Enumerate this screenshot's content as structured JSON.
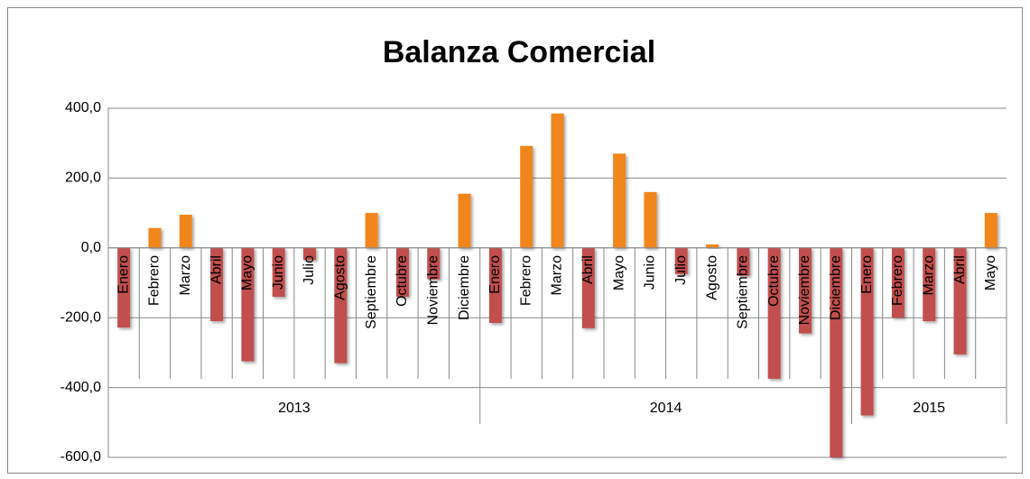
{
  "chart_data": {
    "type": "bar",
    "title": "Balanza Comercial",
    "groups": [
      {
        "label": "2013",
        "categories": [
          "Enero",
          "Febrero",
          "Marzo",
          "Abril",
          "Mayo",
          "Junio",
          "Julio",
          "Agosto",
          "Septiembre",
          "Octubre",
          "Noviembre",
          "Diciembre"
        ],
        "values": [
          -228,
          57,
          95,
          -210,
          -325,
          -140,
          -35,
          -330,
          100,
          -140,
          -90,
          155
        ]
      },
      {
        "label": "2014",
        "categories": [
          "Enero",
          "Febrero",
          "Marzo",
          "Abril",
          "Mayo",
          "Junio",
          "Julio",
          "Agosto",
          "Septiembre",
          "Octubre",
          "Noviembre",
          "Diciembre"
        ],
        "values": [
          -215,
          292,
          385,
          -230,
          270,
          160,
          -75,
          10,
          -80,
          -375,
          -245,
          -600
        ]
      },
      {
        "label": "2015",
        "categories": [
          "Enero",
          "Febrero",
          "Marzo",
          "Abril",
          "Mayo"
        ],
        "values": [
          -480,
          -200,
          -210,
          -305,
          100
        ]
      }
    ],
    "positive_color": "#f0861c",
    "negative_color": "#c0504d",
    "ylim": [
      -600,
      400
    ],
    "yticks": [
      {
        "value": -600,
        "label": "-600,0"
      },
      {
        "value": -400,
        "label": "-400,0"
      },
      {
        "value": -200,
        "label": "-200,0"
      },
      {
        "value": 0,
        "label": "0,0"
      },
      {
        "value": 200,
        "label": "200,0"
      },
      {
        "value": 400,
        "label": "400,0"
      }
    ],
    "grid": true
  }
}
